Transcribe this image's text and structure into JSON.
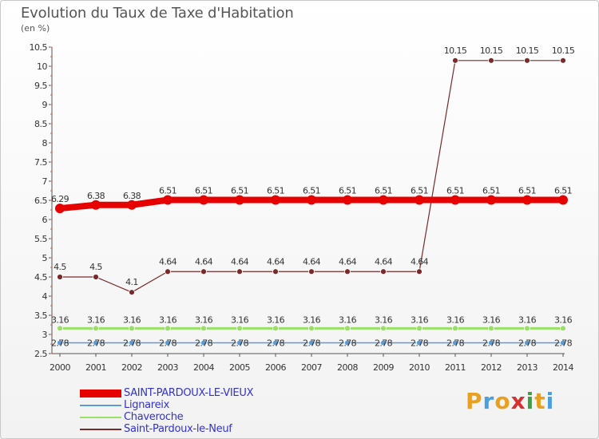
{
  "title": "Evolution du Taux de Taxe d'Habitation",
  "subtitle": "(en %)",
  "brand": {
    "letters": [
      "P",
      "r",
      "o",
      "x",
      "i",
      "t",
      "i"
    ],
    "colors": [
      "#e8a020",
      "#4a9fe0",
      "#e8a020",
      "#d83030",
      "#40a040",
      "#e8a020",
      "#4a9fe0"
    ]
  },
  "chart_data": {
    "type": "line",
    "title": "Evolution du Taux de Taxe d'Habitation",
    "ylabel": "(en %)",
    "xlabel": "",
    "ylim": [
      2.5,
      10.5
    ],
    "yticks": [
      "2.5",
      "3",
      "3.5",
      "4",
      "4.5",
      "5",
      "5.5",
      "6",
      "6.5",
      "7",
      "7.5",
      "8",
      "8.5",
      "9",
      "9.5",
      "10",
      "10.5"
    ],
    "x": [
      "2000",
      "2001",
      "2002",
      "2003",
      "2004",
      "2005",
      "2006",
      "2007",
      "2008",
      "2009",
      "2010",
      "2011",
      "2012",
      "2013",
      "2014"
    ],
    "grid": false,
    "legend_position": "bottom-left",
    "series": [
      {
        "name": "SAINT-PARDOUX-LE-VIEUX",
        "color": "#e60000",
        "values": [
          6.29,
          6.38,
          6.38,
          6.51,
          6.51,
          6.51,
          6.51,
          6.51,
          6.51,
          6.51,
          6.51,
          6.51,
          6.51,
          6.51,
          6.51
        ],
        "labels": [
          "6.29",
          "6.38",
          "6.38",
          "6.51",
          "6.51",
          "6.51",
          "6.51",
          "6.51",
          "6.51",
          "6.51",
          "6.51",
          "6.51",
          "6.51",
          "6.51",
          "6.51"
        ]
      },
      {
        "name": "Lignareix",
        "color": "#5b9bd5",
        "values": [
          2.78,
          2.78,
          2.78,
          2.78,
          2.78,
          2.78,
          2.78,
          2.78,
          2.78,
          2.78,
          2.78,
          2.78,
          2.78,
          2.78,
          2.78
        ],
        "labels": [
          "2.78",
          "2.78",
          "2.78",
          "2.78",
          "2.78",
          "2.78",
          "2.78",
          "2.78",
          "2.78",
          "2.78",
          "2.78",
          "2.78",
          "2.78",
          "2.78",
          "2.78"
        ]
      },
      {
        "name": "Chaveroche",
        "color": "#99e066",
        "values": [
          3.16,
          3.16,
          3.16,
          3.16,
          3.16,
          3.16,
          3.16,
          3.16,
          3.16,
          3.16,
          3.16,
          3.16,
          3.16,
          3.16,
          3.16
        ],
        "labels": [
          "3.16",
          "3.16",
          "3.16",
          "3.16",
          "3.16",
          "3.16",
          "3.16",
          "3.16",
          "3.16",
          "3.16",
          "3.16",
          "3.16",
          "3.16",
          "3.16",
          "3.16"
        ]
      },
      {
        "name": "Saint-Pardoux-le-Neuf",
        "color": "#7a2a2a",
        "values": [
          4.5,
          4.5,
          4.1,
          4.64,
          4.64,
          4.64,
          4.64,
          4.64,
          4.64,
          4.64,
          4.64,
          10.15,
          10.15,
          10.15,
          10.15
        ],
        "labels": [
          "4.5",
          "4.5",
          "4.1",
          "4.64",
          "4.64",
          "4.64",
          "4.64",
          "4.64",
          "4.64",
          "4.64",
          "4.64",
          "10.15",
          "10.15",
          "10.15",
          "10.15"
        ]
      }
    ]
  }
}
